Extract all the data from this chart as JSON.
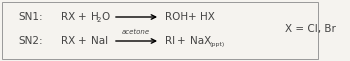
{
  "background_color": "#f5f3ef",
  "border_color": "#999999",
  "sn1_label": "SN1:",
  "sn2_label": "SN2:",
  "acetone_label": "acetone",
  "x_label": "X = Cl, Br",
  "font_size": 7.5,
  "small_font_size": 5.0,
  "text_color": "#444444"
}
